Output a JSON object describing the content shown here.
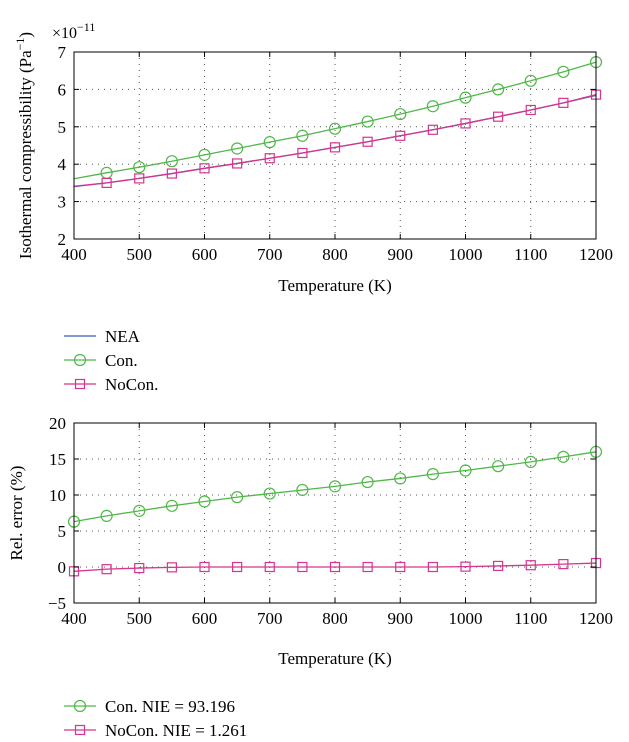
{
  "colors": {
    "nea": "#3b5bb5",
    "con": "#4fb848",
    "nocon": "#d6358f",
    "grid": "#555555",
    "axis": "#000000"
  },
  "chart_data": [
    {
      "type": "line",
      "xlabel": "Temperature (K)",
      "ylabel": "Isothermal compressibility (Pa",
      "ylabel_sup": "−1",
      "ylabel_close": ")",
      "scale_label": "×10",
      "scale_exp": "−11",
      "xlim": [
        400,
        1200
      ],
      "ylim": [
        2,
        7
      ],
      "xticks": [
        400,
        500,
        600,
        700,
        800,
        900,
        1000,
        1100,
        1200
      ],
      "yticks": [
        2,
        3,
        4,
        5,
        6,
        7
      ],
      "grid": true,
      "legend_position": "below",
      "x": [
        400,
        450,
        500,
        550,
        600,
        650,
        700,
        750,
        800,
        850,
        900,
        950,
        1000,
        1050,
        1100,
        1150,
        1200
      ],
      "series": [
        {
          "name": "NEA",
          "color": "#3b5bb5",
          "marker": "none",
          "values": [
            3.4,
            3.5,
            3.62,
            3.75,
            3.89,
            4.02,
            4.16,
            4.3,
            4.45,
            4.6,
            4.76,
            4.92,
            5.09,
            5.27,
            5.45,
            5.64,
            5.84
          ]
        },
        {
          "name": "Con.",
          "color": "#4fb848",
          "marker": "circle",
          "markers_from_index": 1,
          "values": [
            3.61,
            3.77,
            3.92,
            4.08,
            4.25,
            4.42,
            4.59,
            4.76,
            4.95,
            5.14,
            5.34,
            5.55,
            5.78,
            6.0,
            6.23,
            6.47,
            6.73
          ]
        },
        {
          "name": "NoCon.",
          "color": "#d6358f",
          "marker": "square",
          "markers_from_index": 1,
          "values": [
            3.41,
            3.5,
            3.62,
            3.75,
            3.89,
            4.02,
            4.16,
            4.3,
            4.45,
            4.6,
            4.76,
            4.92,
            5.09,
            5.27,
            5.45,
            5.64,
            5.86
          ]
        }
      ]
    },
    {
      "type": "line",
      "xlabel": "Temperature (K)",
      "ylabel": "Rel. error (%)",
      "xlim": [
        400,
        1200
      ],
      "ylim": [
        -5,
        20
      ],
      "xticks": [
        400,
        500,
        600,
        700,
        800,
        900,
        1000,
        1100,
        1200
      ],
      "yticks": [
        -5,
        0,
        5,
        10,
        15,
        20
      ],
      "ytick_labels": [
        "−5",
        "0",
        "5",
        "10",
        "15",
        "20"
      ],
      "grid": true,
      "legend_position": "below",
      "x": [
        400,
        450,
        500,
        550,
        600,
        650,
        700,
        750,
        800,
        850,
        900,
        950,
        1000,
        1050,
        1100,
        1150,
        1200
      ],
      "series": [
        {
          "name": "Con. NIE = 93.196",
          "color": "#4fb848",
          "marker": "circle",
          "markers_from_index": 0,
          "values": [
            6.3,
            7.1,
            7.8,
            8.5,
            9.1,
            9.7,
            10.2,
            10.7,
            11.2,
            11.8,
            12.3,
            12.9,
            13.4,
            14.0,
            14.6,
            15.3,
            16.0
          ]
        },
        {
          "name": "NoCon. NIE = 1.261",
          "color": "#d6358f",
          "marker": "square",
          "markers_from_index": 0,
          "values": [
            -0.6,
            -0.3,
            -0.15,
            -0.05,
            0.0,
            0.0,
            0.0,
            0.0,
            0.0,
            0.0,
            0.0,
            0.0,
            0.05,
            0.15,
            0.25,
            0.4,
            0.55
          ]
        }
      ]
    }
  ]
}
